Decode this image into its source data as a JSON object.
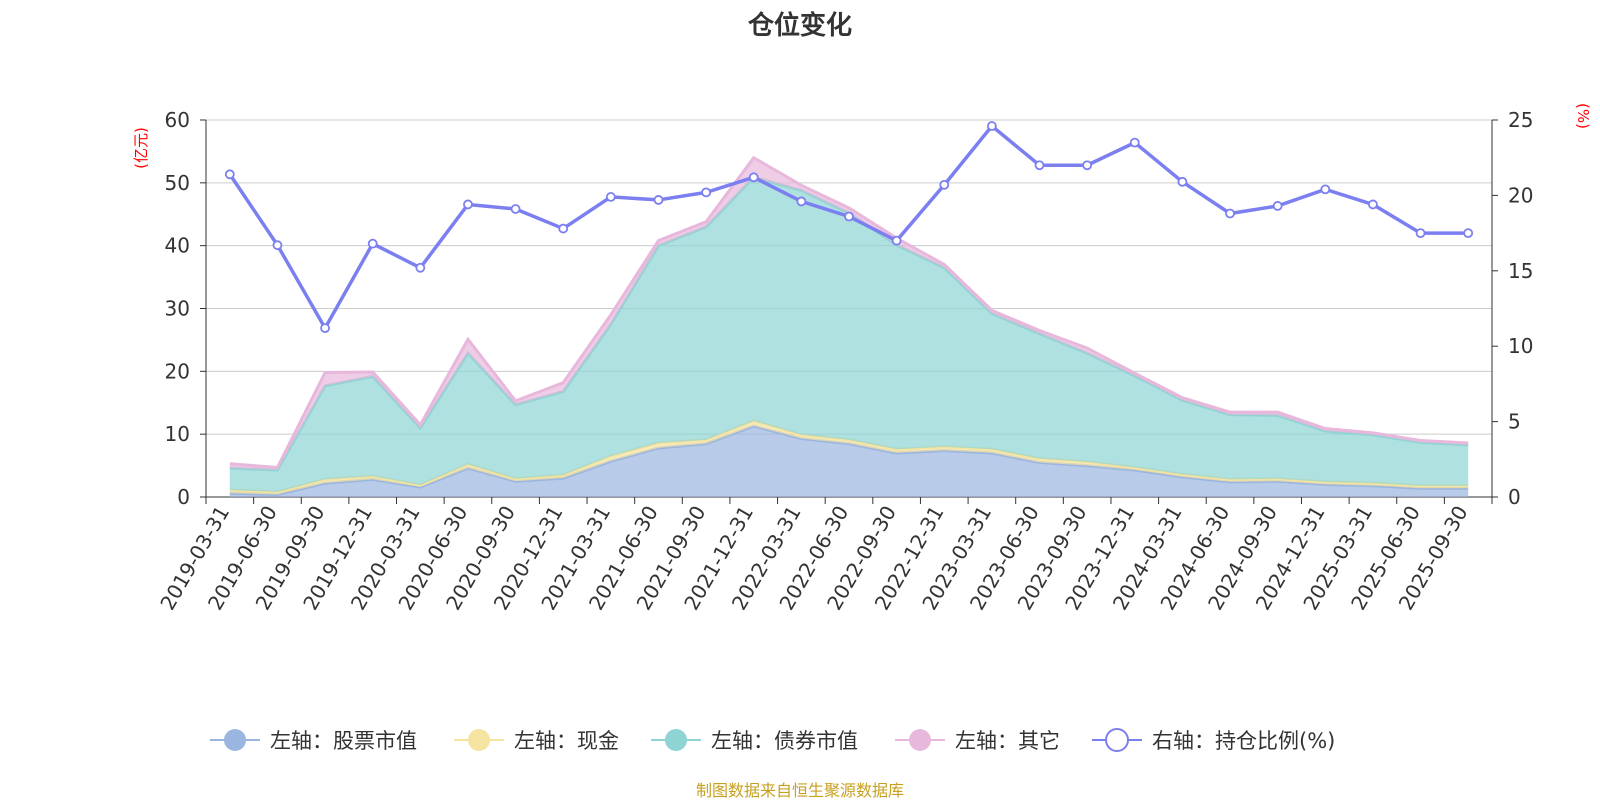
{
  "chart_data": {
    "type": "area",
    "title": "仓位变化",
    "left_unit": "(亿元)",
    "right_unit": "(%)",
    "source": "制图数据来自恒生聚源数据库",
    "categories": [
      "2019-03-31",
      "2019-06-30",
      "2019-09-30",
      "2019-12-31",
      "2020-03-31",
      "2020-06-30",
      "2020-09-30",
      "2020-12-31",
      "2021-03-31",
      "2021-06-30",
      "2021-09-30",
      "2021-12-31",
      "2022-03-31",
      "2022-06-30",
      "2022-09-30",
      "2022-12-31",
      "2023-03-31",
      "2023-06-30",
      "2023-09-30",
      "2023-12-31",
      "2024-03-31",
      "2024-06-30",
      "2024-09-30",
      "2024-12-31",
      "2025-03-31",
      "2025-06-30",
      "2025-09-30"
    ],
    "ylim_left": [
      0,
      60
    ],
    "yticks_left": [
      "0",
      "10",
      "20",
      "30",
      "40",
      "50",
      "60"
    ],
    "ylim_right": [
      0,
      25
    ],
    "yticks_right": [
      "0",
      "5",
      "10",
      "15",
      "20",
      "25"
    ],
    "grid": true,
    "legend_position": "bottom-center",
    "series": [
      {
        "name": "左轴：股票市值",
        "axis": "left",
        "kind": "stack-area",
        "color": "#9ab5e0",
        "values": [
          0.6,
          0.4,
          2.2,
          2.8,
          1.6,
          4.6,
          2.5,
          3.0,
          5.7,
          7.8,
          8.5,
          11.3,
          9.3,
          8.5,
          7.0,
          7.4,
          7.0,
          5.5,
          5.0,
          4.3,
          3.2,
          2.4,
          2.5,
          2.0,
          1.8,
          1.4,
          1.4
        ]
      },
      {
        "name": "左轴：现金",
        "axis": "left",
        "kind": "stack-area",
        "color": "#f5e3a0",
        "values": [
          0.5,
          0.4,
          0.6,
          0.5,
          0.3,
          0.6,
          0.4,
          0.5,
          0.8,
          0.8,
          0.6,
          0.8,
          0.6,
          0.6,
          0.6,
          0.6,
          0.6,
          0.6,
          0.6,
          0.4,
          0.4,
          0.4,
          0.4,
          0.4,
          0.4,
          0.4,
          0.4
        ]
      },
      {
        "name": "左轴：债券市值",
        "axis": "left",
        "kind": "stack-area",
        "color": "#8fd4d4",
        "values": [
          3.5,
          3.5,
          14.9,
          15.9,
          9.1,
          17.7,
          11.8,
          13.3,
          21.0,
          31.4,
          33.9,
          38.8,
          38.9,
          36.1,
          32.5,
          28.5,
          21.6,
          19.9,
          17.3,
          14.6,
          11.8,
          10.3,
          10.1,
          8.1,
          7.7,
          6.9,
          6.5
        ]
      },
      {
        "name": "左轴：其它",
        "axis": "left",
        "kind": "stack-area",
        "color": "#e8b8dc",
        "values": [
          0.7,
          0.4,
          2.1,
          0.7,
          0.5,
          2.2,
          0.6,
          1.4,
          1.5,
          0.8,
          0.8,
          3.1,
          0.8,
          0.8,
          1.1,
          0.5,
          0.5,
          0.5,
          0.8,
          0.4,
          0.4,
          0.4,
          0.5,
          0.4,
          0.3,
          0.3,
          0.3
        ]
      },
      {
        "name": "右轴：持仓比例(%)",
        "axis": "right",
        "kind": "line",
        "color": "#7b7ff0",
        "values": [
          21.4,
          16.7,
          11.2,
          16.8,
          15.2,
          19.4,
          19.1,
          17.8,
          19.9,
          19.7,
          20.2,
          21.2,
          19.6,
          18.6,
          17.0,
          20.7,
          24.6,
          22.0,
          22.0,
          23.5,
          20.9,
          18.8,
          19.3,
          20.4,
          19.4,
          17.5,
          17.5
        ]
      }
    ]
  }
}
